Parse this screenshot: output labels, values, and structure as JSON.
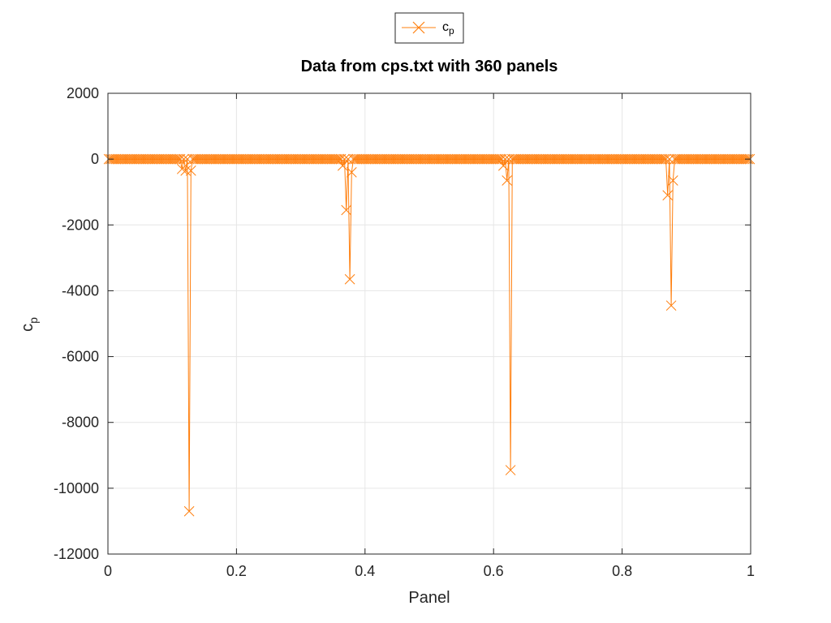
{
  "chart_data": {
    "type": "line",
    "title": "Data from cps.txt with 360 panels",
    "xlabel": "Panel",
    "ylabel": {
      "base": "c",
      "sub": "p"
    },
    "xlim": [
      0,
      1
    ],
    "ylim": [
      -12000,
      2000
    ],
    "xticks": [
      "0",
      "0.2",
      "0.4",
      "0.6",
      "0.8",
      "1"
    ],
    "xtick_values": [
      0,
      0.2,
      0.4,
      0.6,
      0.8,
      1
    ],
    "yticks": [
      "2000",
      "0",
      "-2000",
      "-4000",
      "-6000",
      "-8000",
      "-10000",
      "-12000"
    ],
    "ytick_values": [
      2000,
      0,
      -2000,
      -4000,
      -6000,
      -8000,
      -10000,
      -12000
    ],
    "grid": true,
    "legend": {
      "placement": "top-center, outside",
      "base": "c",
      "sub": "p"
    },
    "series": [
      {
        "name": "cp",
        "color": "#ff7f0e",
        "marker": "x",
        "n_points": 360,
        "baseline": 0,
        "features": [
          {
            "x": 0.115,
            "y": -300
          },
          {
            "x": 0.12,
            "y": -350
          },
          {
            "x": 0.125,
            "y": -10700
          },
          {
            "x": 0.13,
            "y": -350
          },
          {
            "x": 0.365,
            "y": -200
          },
          {
            "x": 0.37,
            "y": -1550
          },
          {
            "x": 0.375,
            "y": -3650
          },
          {
            "x": 0.38,
            "y": -400
          },
          {
            "x": 0.615,
            "y": -200
          },
          {
            "x": 0.62,
            "y": -500
          },
          {
            "x": 0.625,
            "y": -9450
          },
          {
            "x": 0.62,
            "y": -650
          },
          {
            "x": 0.87,
            "y": -1100
          },
          {
            "x": 0.875,
            "y": -4450
          },
          {
            "x": 0.88,
            "y": -650
          }
        ]
      }
    ]
  }
}
